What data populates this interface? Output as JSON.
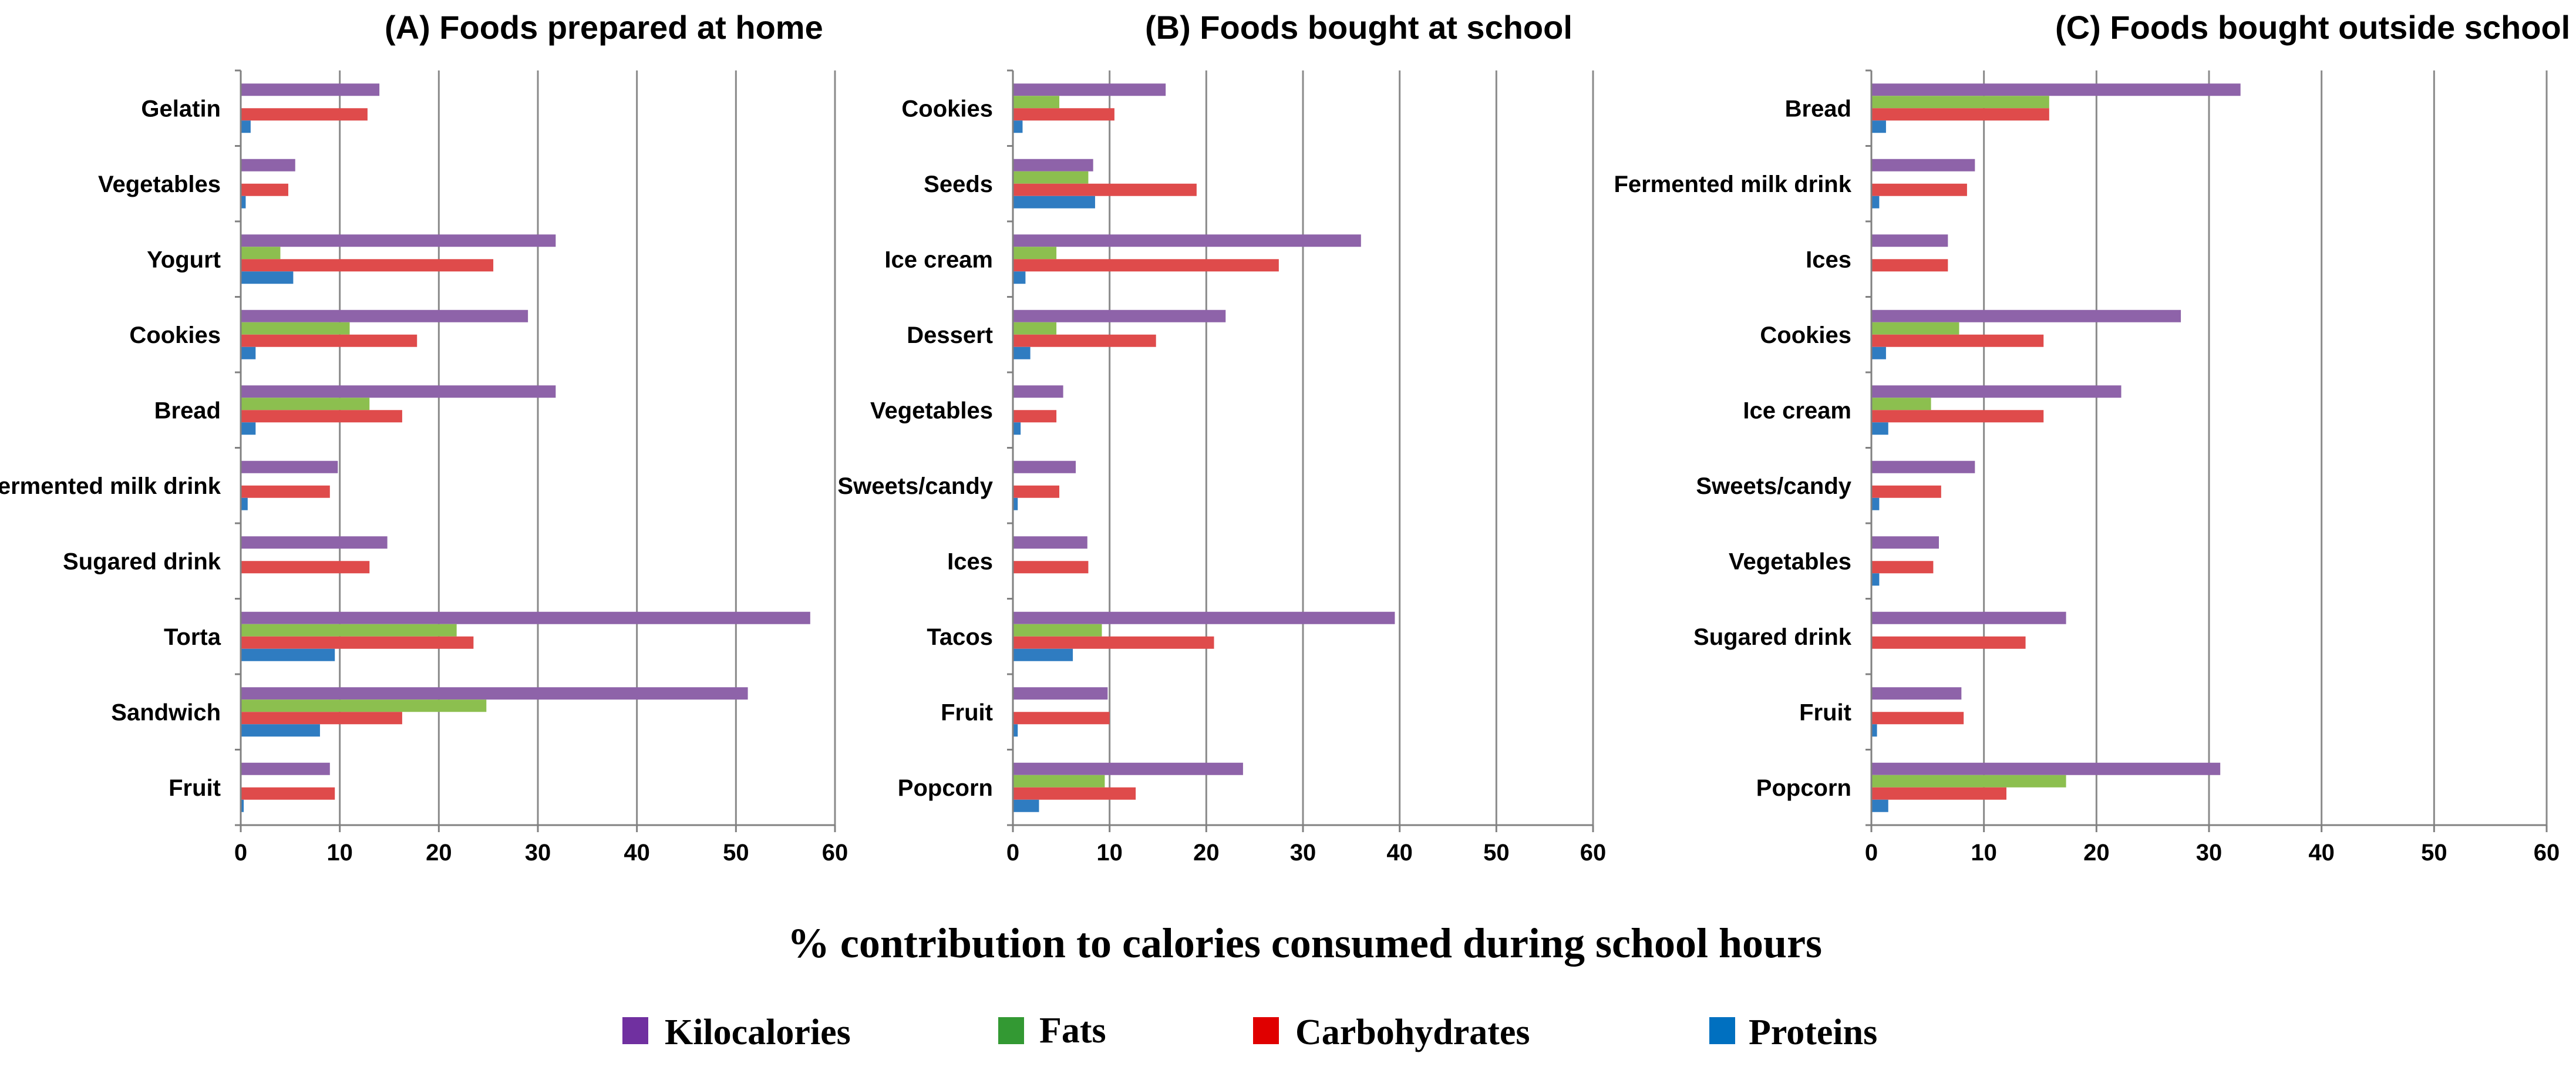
{
  "figure": {
    "xlabel": "% contribution  to calories consumed during school hours"
  },
  "legend": [
    {
      "name": "Kilocalories",
      "color": "#7030a0"
    },
    {
      "name": "Fats",
      "color": "#339933"
    },
    {
      "name": "Carbohydrates",
      "color": "#e00000"
    },
    {
      "name": "Proteins",
      "color": "#0070c0"
    }
  ],
  "chart_data": [
    {
      "type": "bar",
      "orientation": "horizontal",
      "title": "(A) Foods prepared at home",
      "categories": [
        "Gelatin",
        "Vegetables",
        "Yogurt",
        "Cookies",
        "Bread",
        "Fermented milk drink",
        "Sugared drink",
        "Torta",
        "Sandwich",
        "Fruit"
      ],
      "series": [
        {
          "name": "Kilocalories",
          "color": "#8e63a9",
          "values": [
            14,
            5.5,
            31.8,
            29,
            31.8,
            9.8,
            14.8,
            57.5,
            51.2,
            9
          ]
        },
        {
          "name": "Fats",
          "color": "#8cbf4f",
          "values": [
            0,
            0,
            4,
            11,
            13,
            0,
            0,
            21.8,
            24.8,
            0
          ]
        },
        {
          "name": "Carbohydrates",
          "color": "#df4b4b",
          "values": [
            12.8,
            4.8,
            25.5,
            17.8,
            16.3,
            9,
            13,
            23.5,
            16.3,
            9.5
          ]
        },
        {
          "name": "Proteins",
          "color": "#2f7cc1",
          "values": [
            1,
            0.5,
            5.3,
            1.5,
            1.5,
            0.7,
            0,
            9.5,
            8,
            0.3
          ]
        }
      ],
      "xlim": [
        0,
        60
      ],
      "xticks": [
        0,
        10,
        20,
        30,
        40,
        50,
        60
      ],
      "grid": true
    },
    {
      "type": "bar",
      "orientation": "horizontal",
      "title": "(B) Foods bought at school",
      "categories": [
        "Cookies",
        "Seeds",
        "Ice cream",
        "Dessert",
        "Vegetables",
        "Sweets/candy",
        "Ices",
        "Tacos",
        "Fruit",
        "Popcorn"
      ],
      "series": [
        {
          "name": "Kilocalories",
          "color": "#8e63a9",
          "values": [
            15.8,
            8.3,
            36,
            22,
            5.2,
            6.5,
            7.7,
            39.5,
            9.8,
            23.8
          ]
        },
        {
          "name": "Fats",
          "color": "#8cbf4f",
          "values": [
            4.8,
            7.8,
            4.5,
            4.5,
            0,
            0,
            0,
            9.2,
            0,
            9.5
          ]
        },
        {
          "name": "Carbohydrates",
          "color": "#df4b4b",
          "values": [
            10.5,
            19,
            27.5,
            14.8,
            4.5,
            4.8,
            7.8,
            20.8,
            10,
            12.7
          ]
        },
        {
          "name": "Proteins",
          "color": "#2f7cc1",
          "values": [
            1,
            8.5,
            1.3,
            1.8,
            0.8,
            0.5,
            0,
            6.2,
            0.5,
            2.7
          ]
        }
      ],
      "xlim": [
        0,
        60
      ],
      "xticks": [
        0,
        10,
        20,
        30,
        40,
        50,
        60
      ],
      "grid": true
    },
    {
      "type": "bar",
      "orientation": "horizontal",
      "title": "(C) Foods bought outside school",
      "categories": [
        "Bread",
        "Fermented milk drink",
        "Ices",
        "Cookies",
        "Ice cream",
        "Sweets/candy",
        "Vegetables",
        "Sugared drink",
        "Fruit",
        "Popcorn"
      ],
      "series": [
        {
          "name": "Kilocalories",
          "color": "#8e63a9",
          "values": [
            32.8,
            9.2,
            6.8,
            27.5,
            22.2,
            9.2,
            6,
            17.3,
            8,
            31
          ]
        },
        {
          "name": "Fats",
          "color": "#8cbf4f",
          "values": [
            15.8,
            0,
            0,
            7.8,
            5.3,
            0,
            0,
            0,
            0,
            17.3
          ]
        },
        {
          "name": "Carbohydrates",
          "color": "#df4b4b",
          "values": [
            15.8,
            8.5,
            6.8,
            15.3,
            15.3,
            6.2,
            5.5,
            13.7,
            8.2,
            12
          ]
        },
        {
          "name": "Proteins",
          "color": "#2f7cc1",
          "values": [
            1.3,
            0.7,
            0,
            1.3,
            1.5,
            0.7,
            0.7,
            0,
            0.5,
            1.5
          ]
        }
      ],
      "xlim": [
        0,
        60
      ],
      "xticks": [
        0,
        10,
        20,
        30,
        40,
        50,
        60
      ],
      "grid": true
    }
  ]
}
